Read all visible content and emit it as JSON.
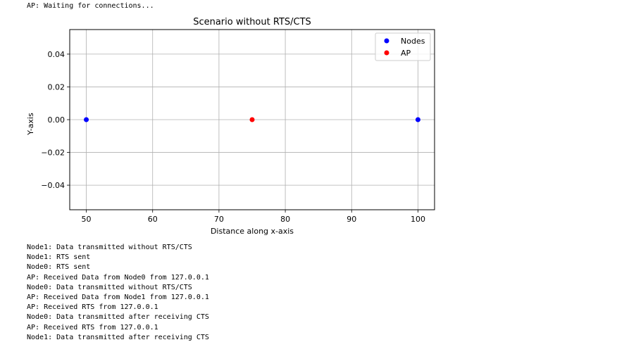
{
  "console_top": "AP: Waiting for connections...",
  "console_log": [
    "Node1: Data transmitted without RTS/CTS",
    "Node1: RTS sent",
    "Node0: RTS sent",
    "AP: Received Data from Node0 from 127.0.0.1",
    "Node0: Data transmitted without RTS/CTS",
    "AP: Received Data from Node1 from 127.0.0.1",
    "AP: Received RTS from 127.0.0.1",
    "Node0: Data transmitted after receiving CTS",
    "AP: Received RTS from 127.0.0.1",
    "Node1: Data transmitted after receiving CTS"
  ],
  "chart_data": {
    "type": "scatter",
    "title": "Scenario without RTS/CTS",
    "xlabel": "Distance along x-axis",
    "ylabel": "Y-axis",
    "xlim": [
      47.5,
      102.5
    ],
    "ylim": [
      -0.055,
      0.055
    ],
    "x_ticks": [
      50,
      60,
      70,
      80,
      90,
      100
    ],
    "y_ticks": [
      0.04,
      0.02,
      0.0,
      -0.02,
      -0.04
    ],
    "y_tick_labels": [
      "0.04",
      "0.02",
      "0.00",
      "−0.02",
      "−0.04"
    ],
    "grid": true,
    "legend_position": "top-right",
    "series": [
      {
        "name": "Nodes",
        "color": "#0000ff",
        "points": [
          [
            50,
            0
          ],
          [
            100,
            0
          ]
        ]
      },
      {
        "name": "AP",
        "color": "#ff0000",
        "points": [
          [
            75,
            0
          ]
        ]
      }
    ]
  }
}
